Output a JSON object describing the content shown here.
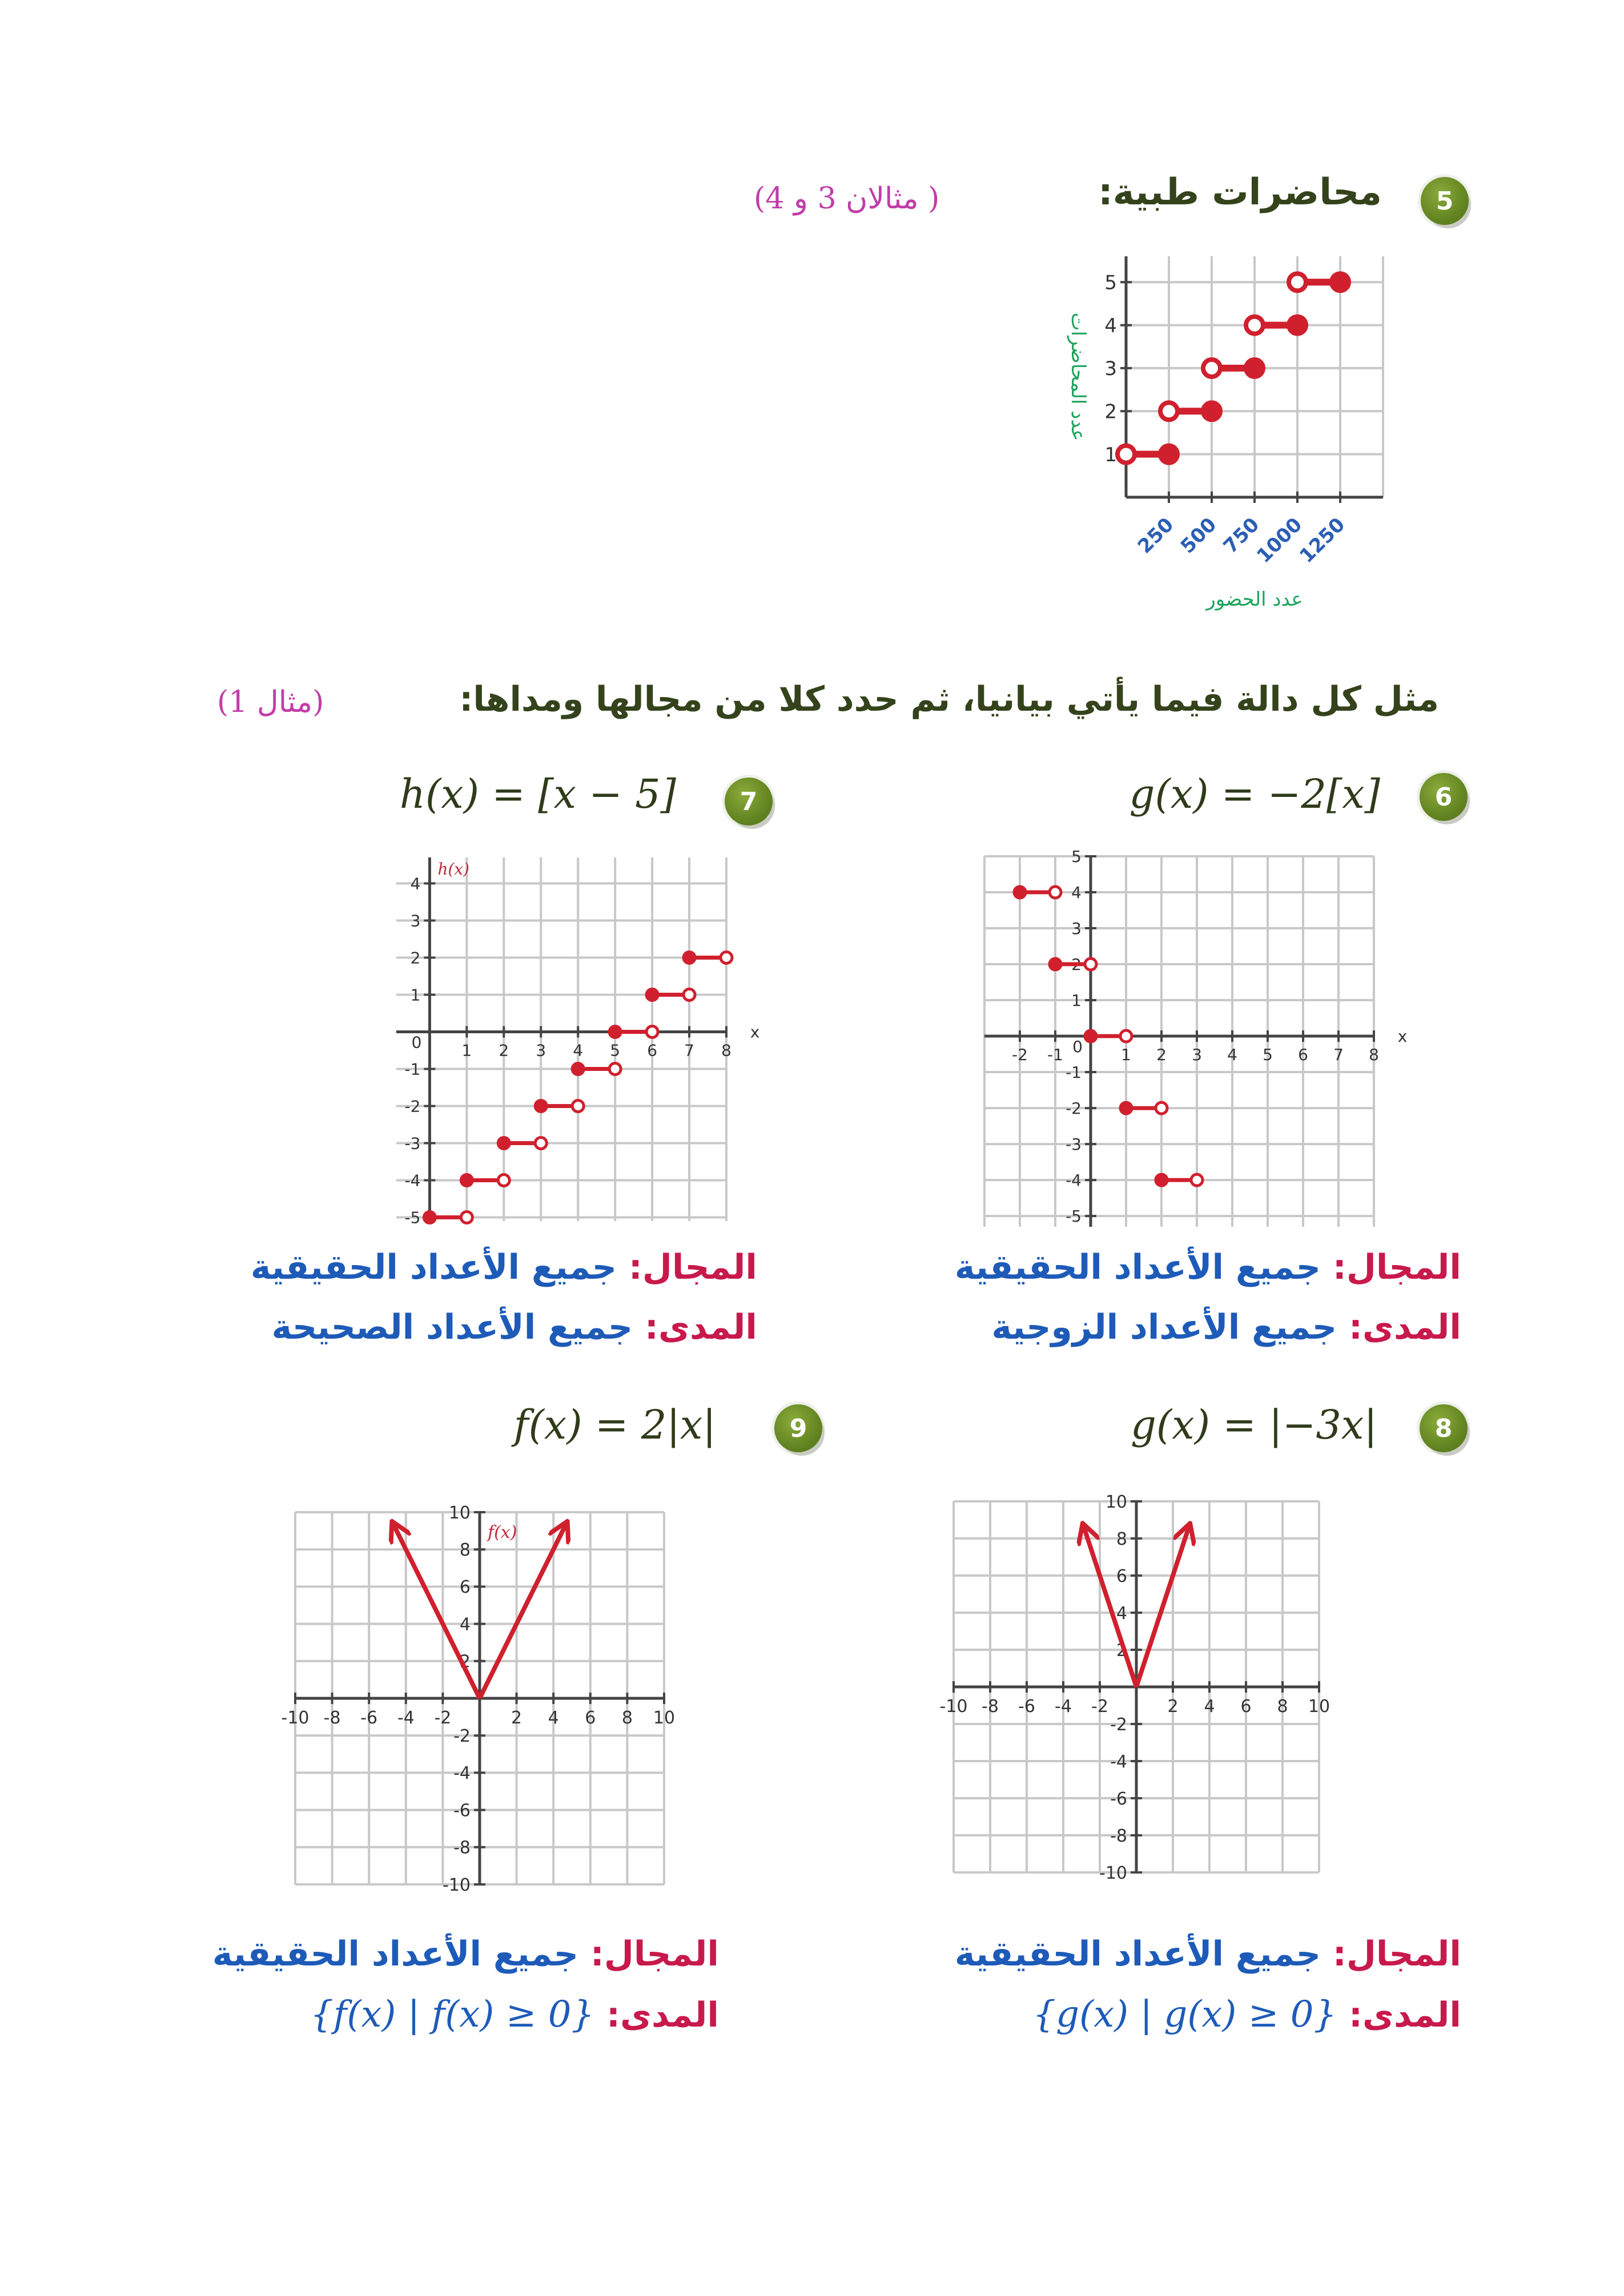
{
  "colors": {
    "badge": "#6b8e23",
    "title": "#34431b",
    "example": "#c23ca8",
    "answer": "#1e5bb8",
    "answer_label": "#c8194c",
    "graph": "#d0202e",
    "grid": "#c8c8c8"
  },
  "section5": {
    "badge": "5",
    "title": "محاضرات طبية:",
    "example_ref": "(مثالان 3 و 4 )"
  },
  "instruction": {
    "text": "مثل كل دالة فيما يأتي بيانيا، ثم حدد كلا من مجالها ومداها:",
    "example_ref": "(مثال 1)"
  },
  "problems": [
    {
      "badge": "6",
      "formula": "g(x) = −2[x]",
      "domain_label": "المجال:",
      "domain": "جميع الأعداد الحقيقية",
      "range_label": "المدى:",
      "range": "جميع الأعداد الزوجية"
    },
    {
      "badge": "7",
      "formula": "h(x) = [x − 5]",
      "domain_label": "المجال:",
      "domain": "جميع الأعداد الحقيقية",
      "range_label": "المدى:",
      "range": "جميع الأعداد الصحيحة"
    },
    {
      "badge": "8",
      "formula": "g(x) = |−3x|",
      "domain_label": "المجال:",
      "domain": "جميع الأعداد الحقيقية",
      "range_label": "المدى:",
      "range": "{g(x) | g(x) ≥ 0}"
    },
    {
      "badge": "9",
      "formula": "f(x) = 2|x|",
      "domain_label": "المجال:",
      "domain": "جميع الأعداد الحقيقية",
      "range_label": "المدى:",
      "range": "{f(x) | f(x) ≥ 0}"
    }
  ],
  "chart_data": [
    {
      "type": "step",
      "xlabel": "عدد الحضور",
      "ylabel": "عدد المحاضرات",
      "xlim": [
        0,
        1500
      ],
      "ylim": [
        0,
        5.6
      ],
      "grid": true,
      "x_ticks": [
        250,
        500,
        750,
        1000,
        1250
      ],
      "y_ticks": [
        1,
        2,
        3,
        4,
        5
      ],
      "x_tick_style": "rotated-blue",
      "segments": [
        {
          "x": [
            0,
            250
          ],
          "y": 1,
          "left": "open",
          "right": "closed"
        },
        {
          "x": [
            250,
            500
          ],
          "y": 2,
          "left": "open",
          "right": "closed"
        },
        {
          "x": [
            500,
            750
          ],
          "y": 3,
          "left": "open",
          "right": "closed"
        },
        {
          "x": [
            750,
            1000
          ],
          "y": 4,
          "left": "open",
          "right": "closed"
        },
        {
          "x": [
            1000,
            1250
          ],
          "y": 5,
          "left": "open",
          "right": "closed"
        }
      ]
    },
    {
      "type": "step",
      "xlabel": "x",
      "ylabel": "",
      "xlim": [
        -3,
        8
      ],
      "ylim": [
        -5.3,
        5
      ],
      "grid": true,
      "origin_label": "0",
      "x_ticks": [
        -2,
        -1,
        1,
        2,
        3,
        4,
        5,
        6,
        7,
        8
      ],
      "y_ticks": [
        -5,
        -4,
        -3,
        -2,
        -1,
        1,
        2,
        3,
        4,
        5
      ],
      "segments": [
        {
          "x": [
            -2,
            -1
          ],
          "y": 4,
          "left": "closed",
          "right": "open"
        },
        {
          "x": [
            -1,
            0
          ],
          "y": 2,
          "left": "closed",
          "right": "open"
        },
        {
          "x": [
            0,
            1
          ],
          "y": 0,
          "left": "closed",
          "right": "open"
        },
        {
          "x": [
            1,
            2
          ],
          "y": -2,
          "left": "closed",
          "right": "open"
        },
        {
          "x": [
            2,
            3
          ],
          "y": -4,
          "left": "closed",
          "right": "open"
        }
      ]
    },
    {
      "type": "step",
      "xlabel": "x",
      "ylabel": "h(x)",
      "xlim": [
        -0.9,
        8
      ],
      "ylim": [
        -5.1,
        4.7
      ],
      "grid": true,
      "origin_label": "0",
      "x_ticks": [
        1,
        2,
        3,
        4,
        5,
        6,
        7,
        8
      ],
      "y_ticks": [
        -5,
        -4,
        -3,
        -2,
        -1,
        1,
        2,
        3,
        4
      ],
      "segments": [
        {
          "x": [
            0,
            1
          ],
          "y": -5,
          "left": "closed",
          "right": "open"
        },
        {
          "x": [
            1,
            2
          ],
          "y": -4,
          "left": "closed",
          "right": "open"
        },
        {
          "x": [
            2,
            3
          ],
          "y": -3,
          "left": "closed",
          "right": "open"
        },
        {
          "x": [
            3,
            4
          ],
          "y": -2,
          "left": "closed",
          "right": "open"
        },
        {
          "x": [
            4,
            5
          ],
          "y": -1,
          "left": "closed",
          "right": "open"
        },
        {
          "x": [
            5,
            6
          ],
          "y": 0,
          "left": "closed",
          "right": "open"
        },
        {
          "x": [
            6,
            7
          ],
          "y": 1,
          "left": "closed",
          "right": "open"
        },
        {
          "x": [
            7,
            8
          ],
          "y": 2,
          "left": "closed",
          "right": "open"
        }
      ]
    },
    {
      "type": "line",
      "xlabel": "",
      "ylabel": "",
      "xlim": [
        -10,
        10
      ],
      "ylim": [
        -10,
        10
      ],
      "grid": true,
      "grid_step": 2,
      "x_ticks": [
        -10,
        -8,
        -6,
        -4,
        -2,
        2,
        4,
        6,
        8,
        10
      ],
      "y_ticks": [
        -10,
        -8,
        -6,
        -4,
        -2,
        2,
        4,
        6,
        8,
        10
      ],
      "lines": [
        {
          "from": [
            0,
            0
          ],
          "to": [
            -2.9,
            8.7
          ],
          "arrow": true
        },
        {
          "from": [
            0,
            0
          ],
          "to": [
            2.9,
            8.7
          ],
          "arrow": true
        }
      ]
    },
    {
      "type": "line",
      "xlabel": "",
      "ylabel": "f(x)",
      "xlim": [
        -10,
        10
      ],
      "ylim": [
        -10,
        10
      ],
      "grid": true,
      "grid_step": 2,
      "x_ticks": [
        -10,
        -8,
        -6,
        -4,
        -2,
        2,
        4,
        6,
        8,
        10
      ],
      "y_ticks": [
        -10,
        -8,
        -6,
        -4,
        -2,
        2,
        4,
        6,
        8,
        10
      ],
      "lines": [
        {
          "from": [
            0,
            0
          ],
          "to": [
            -4.7,
            9.4
          ],
          "arrow": true
        },
        {
          "from": [
            0,
            0
          ],
          "to": [
            4.7,
            9.4
          ],
          "arrow": true
        }
      ]
    }
  ]
}
